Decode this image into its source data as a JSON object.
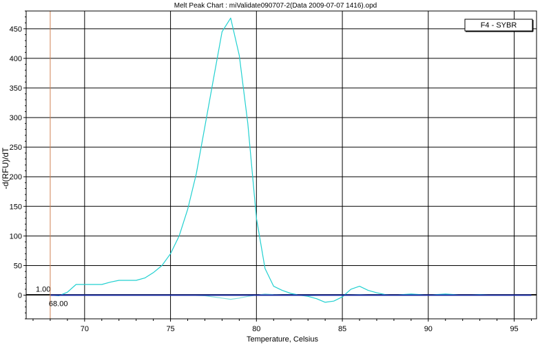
{
  "chart_data": {
    "type": "line",
    "title": "Melt Peak Chart : miValidate090707-2(Data 2009-07-07 1416).opd",
    "xlabel": "Temperature, Celsius",
    "ylabel": "-d(RFU)/dT",
    "xlim": [
      66.6,
      96.3
    ],
    "ylim": [
      -40,
      480
    ],
    "x_ticks": [
      70,
      75,
      80,
      85,
      90,
      95
    ],
    "y_ticks": [
      0,
      50,
      100,
      150,
      200,
      250,
      300,
      350,
      400,
      450
    ],
    "grid": true,
    "legend": {
      "placement": "top-right",
      "entries": [
        "F4 - SYBR"
      ]
    },
    "threshold": {
      "value": 1.0,
      "label": "1.00"
    },
    "cursor": {
      "x": 68.0,
      "label": "68.00"
    },
    "series": [
      {
        "color": "#20d0d0",
        "x": [
          68.0,
          68.5,
          69.0,
          69.5,
          70.0,
          70.5,
          71.0,
          71.5,
          72.0,
          72.5,
          73.0,
          73.5,
          74.0,
          74.5,
          75.0,
          75.5,
          76.0,
          76.5,
          77.0,
          77.5,
          78.0,
          78.5,
          79.0,
          79.5,
          80.0,
          80.5,
          81.0,
          81.5,
          82.0,
          82.5,
          83.0,
          83.5,
          84.0,
          84.5,
          85.0,
          85.5,
          86.0,
          86.5,
          87.0,
          87.5,
          88.0,
          89.0,
          90.0,
          91.0,
          92.0,
          93.0,
          94.0,
          95.0,
          96.0
        ],
        "values": [
          0,
          -1,
          5,
          18,
          18,
          18,
          18,
          22,
          25,
          25,
          25,
          29,
          38,
          50,
          70,
          100,
          145,
          205,
          285,
          365,
          445,
          468,
          405,
          290,
          130,
          45,
          15,
          8,
          3,
          0,
          -2,
          -6,
          -12,
          -10,
          -3,
          10,
          15,
          8,
          4,
          1,
          0,
          2,
          0,
          2,
          0,
          1,
          0,
          0,
          0
        ]
      },
      {
        "color": "#80dcdc",
        "x": [
          68.0,
          69.0,
          70.0,
          71.0,
          72.0,
          73.0,
          74.0,
          75.0,
          76.0,
          77.0,
          77.5,
          78.0,
          78.5,
          79.0,
          79.5,
          80.0,
          80.5,
          81.0,
          82.0,
          83.0,
          84.0,
          85.0,
          86.0,
          87.0,
          88.0,
          89.0,
          90.0,
          91.0,
          92.0,
          93.0,
          94.0,
          95.0,
          96.0
        ],
        "values": [
          0,
          0,
          0,
          0,
          0,
          0,
          0,
          0,
          0,
          -1,
          -3,
          -5,
          -7,
          -5,
          -2,
          0,
          2,
          1,
          0,
          -1,
          0,
          0,
          1,
          0,
          0,
          0,
          0,
          0,
          0,
          0,
          0,
          0,
          0
        ]
      },
      {
        "color": "#1a2aa0",
        "x": [
          68.0,
          70.0,
          72.0,
          74.0,
          76.0,
          78.0,
          80.0,
          82.0,
          84.0,
          86.0,
          88.0,
          90.0,
          92.0,
          94.0,
          96.0
        ],
        "values": [
          0,
          0,
          0,
          0,
          0,
          0,
          0,
          0,
          0,
          0,
          0,
          0,
          0,
          0,
          0
        ]
      }
    ]
  }
}
